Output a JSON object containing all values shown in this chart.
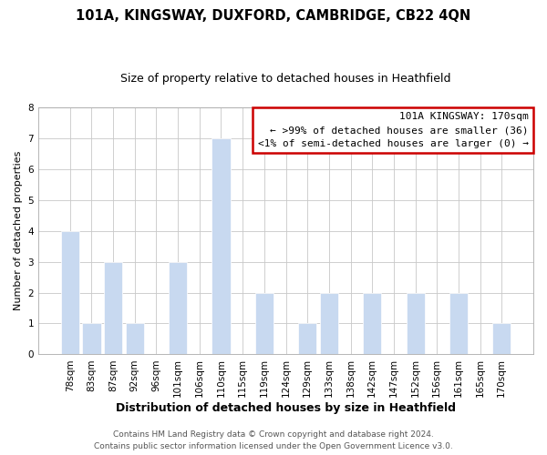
{
  "title": "101A, KINGSWAY, DUXFORD, CAMBRIDGE, CB22 4QN",
  "subtitle": "Size of property relative to detached houses in Heathfield",
  "xlabel": "Distribution of detached houses by size in Heathfield",
  "ylabel": "Number of detached properties",
  "categories": [
    "78sqm",
    "83sqm",
    "87sqm",
    "92sqm",
    "96sqm",
    "101sqm",
    "106sqm",
    "110sqm",
    "115sqm",
    "119sqm",
    "124sqm",
    "129sqm",
    "133sqm",
    "138sqm",
    "142sqm",
    "147sqm",
    "152sqm",
    "156sqm",
    "161sqm",
    "165sqm",
    "170sqm"
  ],
  "values": [
    4,
    1,
    3,
    1,
    0,
    3,
    0,
    7,
    0,
    2,
    0,
    1,
    2,
    0,
    2,
    0,
    2,
    0,
    2,
    0,
    1
  ],
  "bar_color": "#c8d9f0",
  "bar_edge_color": "#ffffff",
  "grid_color": "#c8c8c8",
  "background_color": "#ffffff",
  "ylim": [
    0,
    8
  ],
  "yticks": [
    0,
    1,
    2,
    3,
    4,
    5,
    6,
    7,
    8
  ],
  "annotation_title": "101A KINGSWAY: 170sqm",
  "annotation_line1": "← >99% of detached houses are smaller (36)",
  "annotation_line2": "<1% of semi-detached houses are larger (0) →",
  "annotation_box_color": "#ffffff",
  "annotation_box_edge_color": "#cc0000",
  "footer_line1": "Contains HM Land Registry data © Crown copyright and database right 2024.",
  "footer_line2": "Contains public sector information licensed under the Open Government Licence v3.0.",
  "title_fontsize": 10.5,
  "subtitle_fontsize": 9,
  "xlabel_fontsize": 9,
  "ylabel_fontsize": 8,
  "tick_fontsize": 7.5,
  "annotation_fontsize": 8,
  "footer_fontsize": 6.5
}
